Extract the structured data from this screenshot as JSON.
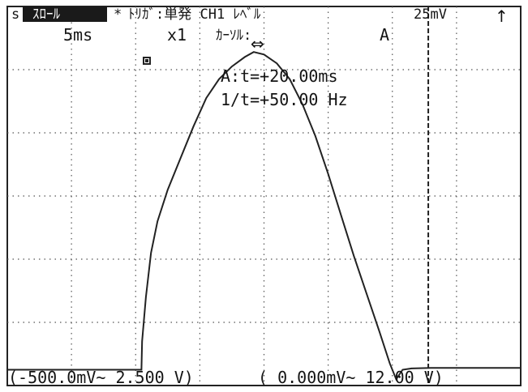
{
  "status_bar": {
    "channel_marker": "s",
    "menu_label": "ｽﾛｰﾙ",
    "star": "*",
    "trigger": "ﾄﾘｶﾞ:単発 CH1 ﾚﾍﾞﾙ",
    "level": "25mV",
    "level_slope_icon": "up-arrow-icon"
  },
  "settings": {
    "time_div": "5ms",
    "magnification": "x1",
    "cursor_label": "ｶｰｿﾙ:",
    "cursor_mode_icon": "left-right-arrow-icon",
    "cursor_id": "A"
  },
  "readout": {
    "time": "A:t=+20.00ms",
    "frequency": "1/t=+50.00 Hz"
  },
  "footer": {
    "range_ch1": "(-500.0mV~ 2.500 V)",
    "range_ch2": "( 0.000mV~ 12.00 V)"
  },
  "chart_data": {
    "type": "line",
    "title": "",
    "xlabel": "",
    "ylabel": "",
    "grid": true,
    "divisions": {
      "x": 8,
      "y": 6
    },
    "x_units": "ms",
    "time_per_div_ms": 5,
    "xlim_ms": [
      0,
      40
    ],
    "ylim_div": [
      0,
      6
    ],
    "cursor_A_ms": 32.8,
    "series": [
      {
        "points": [
          [
            0.0,
            0.25
          ],
          [
            1.0,
            0.25
          ],
          [
            2.0,
            0.25
          ],
          [
            3.0,
            0.25
          ],
          [
            4.0,
            0.25
          ],
          [
            5.0,
            0.25
          ],
          [
            6.0,
            0.25
          ],
          [
            7.0,
            0.25
          ],
          [
            8.0,
            0.25
          ],
          [
            9.0,
            0.25
          ],
          [
            10.0,
            0.25
          ],
          [
            10.45,
            0.25
          ],
          [
            10.5,
            0.7
          ],
          [
            10.8,
            1.4
          ],
          [
            11.2,
            2.1
          ],
          [
            11.7,
            2.6
          ],
          [
            12.5,
            3.1
          ],
          [
            13.5,
            3.6
          ],
          [
            14.5,
            4.1
          ],
          [
            15.5,
            4.55
          ],
          [
            16.5,
            4.85
          ],
          [
            17.5,
            5.05
          ],
          [
            18.5,
            5.2
          ],
          [
            19.2,
            5.28
          ],
          [
            20.0,
            5.24
          ],
          [
            21.0,
            5.1
          ],
          [
            22.0,
            4.85
          ],
          [
            23.0,
            4.45
          ],
          [
            24.0,
            3.95
          ],
          [
            25.0,
            3.35
          ],
          [
            26.0,
            2.7
          ],
          [
            27.0,
            2.05
          ],
          [
            28.0,
            1.45
          ],
          [
            29.0,
            0.85
          ],
          [
            29.8,
            0.35
          ],
          [
            30.3,
            0.1
          ],
          [
            30.8,
            0.25
          ],
          [
            31.5,
            0.27
          ],
          [
            33.0,
            0.28
          ],
          [
            35.0,
            0.28
          ],
          [
            37.0,
            0.28
          ],
          [
            40.0,
            0.28
          ]
        ]
      }
    ]
  }
}
